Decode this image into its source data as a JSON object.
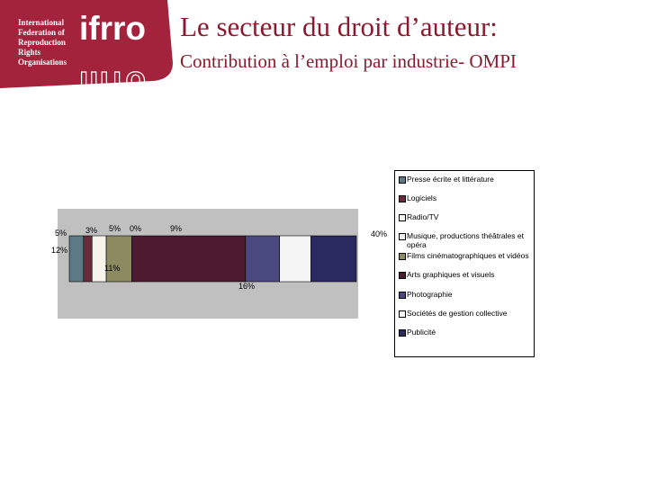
{
  "header": {
    "title": "Le secteur du droit d’auteur:",
    "subtitle": "Contribution à l’emploi par industrie- OMPI",
    "logo": {
      "org_lines": [
        "International",
        "Federation of",
        "Reproduction",
        "Rights",
        "Organisations"
      ],
      "acronym": "ifrro",
      "color": "#a3233c"
    }
  },
  "chart_data": {
    "type": "bar",
    "stacked": true,
    "orientation": "horizontal",
    "categories": [
      "Presse écrite et littérature",
      "Logiciels",
      "Radio/TV",
      "Musique, productions théâtrales et opéra",
      "Films cinématographiques et vidéos",
      "Arts graphiques et visuels",
      "Photographie",
      "Sociétés de gestion collective",
      "Publicité"
    ],
    "values": [
      5,
      3,
      5,
      0,
      9,
      40,
      12,
      11,
      16
    ],
    "labels": [
      "5%",
      "3%",
      "5%",
      "0%",
      "9%",
      "40%",
      "12%",
      "11%",
      "16%"
    ],
    "colors": [
      "#5b7a85",
      "#6b2a3a",
      "#f4f4ec",
      "#eeeeee",
      "#8b8a60",
      "#4e1a32",
      "#4a4a80",
      "#f5f5f5",
      "#2a2a60"
    ],
    "legend_position": "right",
    "plot_background": "#c0c0c0"
  }
}
